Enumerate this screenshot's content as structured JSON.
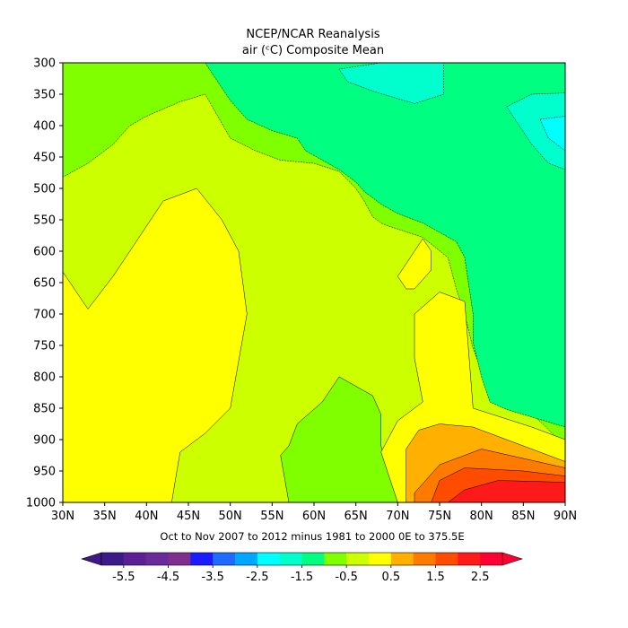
{
  "chart_data": {
    "type": "contour",
    "title": "NCEP/NCAR Reanalysis",
    "subtitle": "air (ᶜC) Composite Mean",
    "xlabel": "Oct to Nov 2007 to 2012 minus 1981 to 2000 0E to 375.5E",
    "ylabel": "",
    "x_ticks": [
      "30N",
      "35N",
      "40N",
      "45N",
      "50N",
      "55N",
      "60N",
      "65N",
      "70N",
      "75N",
      "80N",
      "85N",
      "90N"
    ],
    "y_ticks": [
      "300",
      "350",
      "400",
      "450",
      "500",
      "550",
      "600",
      "650",
      "700",
      "750",
      "800",
      "850",
      "900",
      "950",
      "1000"
    ],
    "xlim": [
      30,
      90
    ],
    "ylim": [
      1000,
      300
    ],
    "y_inverted": true,
    "colorbar": {
      "tick_labels": [
        "-5.5",
        "-4.5",
        "-3.5",
        "-2.5",
        "-1.5",
        "-0.5",
        "0.5",
        "1.5",
        "2.5"
      ],
      "tick_values": [
        -5.5,
        -4.5,
        -3.5,
        -2.5,
        -1.5,
        -0.5,
        0.5,
        1.5,
        2.5
      ],
      "boundaries": [
        -6,
        -5.5,
        -5,
        -4.5,
        -4,
        -3.5,
        -3,
        -2.5,
        -2,
        -1.5,
        -1,
        -0.5,
        0,
        0.5,
        1,
        1.5,
        2,
        2.5,
        3
      ],
      "colors": [
        "#3d1a87",
        "#5b2096",
        "#6a2a9a",
        "#7e2e8e",
        "#1a1aff",
        "#1f6bff",
        "#00a6ff",
        "#00ffff",
        "#00ffcc",
        "#00ff80",
        "#80ff00",
        "#ccff00",
        "#ffff00",
        "#ffb000",
        "#ff7a00",
        "#ff4c00",
        "#ff1a1a",
        "#ff0033"
      ],
      "extend": "both"
    },
    "regions": [
      {
        "level": "0 to 0.5",
        "color": "#ccff00",
        "points": [
          [
            30,
            300
          ],
          [
            90,
            300
          ],
          [
            90,
            1000
          ],
          [
            30,
            1000
          ]
        ]
      },
      {
        "level": "-0.5 to 0",
        "color": "#80ff00",
        "points": [
          [
            30,
            300
          ],
          [
            90,
            300
          ],
          [
            90,
            910
          ],
          [
            85,
            845
          ],
          [
            83,
            800
          ],
          [
            80,
            790
          ],
          [
            79,
            755
          ],
          [
            78,
            700
          ],
          [
            77,
            660
          ],
          [
            76,
            610
          ],
          [
            73,
            578
          ],
          [
            68.5,
            558
          ],
          [
            68,
            555
          ],
          [
            67,
            545
          ],
          [
            66,
            520
          ],
          [
            65,
            500
          ],
          [
            63,
            473
          ],
          [
            60,
            460
          ],
          [
            56,
            455
          ],
          [
            53,
            440
          ],
          [
            50,
            420
          ],
          [
            47,
            350
          ],
          [
            44,
            362
          ],
          [
            40,
            385
          ],
          [
            38,
            400
          ],
          [
            36,
            430
          ],
          [
            33,
            460
          ],
          [
            30,
            482
          ]
        ]
      },
      {
        "level": "-1 to -0.5",
        "color": "#00ff80",
        "points": [
          [
            30,
            300
          ],
          [
            90,
            300
          ],
          [
            90,
            880
          ],
          [
            83,
            852
          ],
          [
            81,
            840
          ],
          [
            80,
            800
          ],
          [
            79,
            745
          ],
          [
            79,
            700
          ],
          [
            78,
            610
          ],
          [
            77,
            585
          ],
          [
            73,
            555
          ],
          [
            70,
            540
          ],
          [
            68,
            525
          ],
          [
            66,
            505
          ],
          [
            65,
            490
          ],
          [
            63,
            470
          ],
          [
            61,
            455
          ],
          [
            59,
            440
          ],
          [
            58,
            420
          ],
          [
            55,
            408
          ],
          [
            52,
            390
          ],
          [
            50,
            360
          ],
          [
            48,
            320
          ],
          [
            47,
            300
          ]
        ]
      },
      {
        "level": "-1.5 to -1",
        "color": "#00ffcc",
        "points": [
          [
            68,
            300
          ],
          [
            75.5,
            300
          ],
          [
            75.5,
            350
          ],
          [
            72,
            365
          ],
          [
            67,
            345
          ],
          [
            64,
            330
          ],
          [
            63,
            310
          ]
        ]
      },
      {
        "level": "-1.5 to -1 (NE)",
        "color": "#00ffcc",
        "points": [
          [
            83,
            370
          ],
          [
            86,
            350
          ],
          [
            90,
            348
          ],
          [
            90,
            470
          ],
          [
            88,
            460
          ],
          [
            86,
            430
          ]
        ]
      },
      {
        "level": "-2 to -1.5",
        "color": "#00ffff",
        "points": [
          [
            87,
            390
          ],
          [
            90,
            385
          ],
          [
            90,
            440
          ],
          [
            88,
            420
          ]
        ]
      },
      {
        "level": "0.5 to 1 (W)",
        "color": "#ffff00",
        "points": [
          [
            30,
            633
          ],
          [
            30,
            1000
          ],
          [
            43,
            1000
          ],
          [
            44,
            920
          ],
          [
            47,
            890
          ],
          [
            50,
            850
          ],
          [
            52,
            700
          ],
          [
            51,
            600
          ],
          [
            49,
            550
          ],
          [
            46,
            500
          ],
          [
            42,
            520
          ],
          [
            38,
            600
          ],
          [
            36,
            640
          ],
          [
            33,
            692
          ]
        ]
      },
      {
        "level": "0.5 to 1 (E)",
        "color": "#ffff00",
        "points": [
          [
            72,
            700
          ],
          [
            75,
            665
          ],
          [
            78,
            680
          ],
          [
            79,
            850
          ],
          [
            86,
            880
          ],
          [
            90,
            900
          ],
          [
            90,
            1000
          ],
          [
            70,
            1000
          ],
          [
            68,
            920
          ],
          [
            70,
            870
          ],
          [
            73,
            840
          ],
          [
            72,
            770
          ]
        ]
      },
      {
        "level": "1 to 1.5",
        "color": "#ffb000",
        "points": [
          [
            71,
            915
          ],
          [
            72.5,
            885
          ],
          [
            75,
            875
          ],
          [
            79,
            880
          ],
          [
            90,
            935
          ],
          [
            90,
            1000
          ],
          [
            71,
            1000
          ]
        ]
      },
      {
        "level": "1.5 to 2",
        "color": "#ff7a00",
        "points": [
          [
            72,
            985
          ],
          [
            75,
            940
          ],
          [
            80,
            915
          ],
          [
            90,
            945
          ],
          [
            90,
            1000
          ],
          [
            72,
            1000
          ]
        ]
      },
      {
        "level": "2 to 2.5",
        "color": "#ff4c00",
        "points": [
          [
            74,
            1000
          ],
          [
            75,
            965
          ],
          [
            78,
            945
          ],
          [
            85,
            950
          ],
          [
            90,
            958
          ],
          [
            90,
            1000
          ]
        ]
      },
      {
        "level": "2.5 to 3",
        "color": "#ff1a1a",
        "points": [
          [
            76,
            1000
          ],
          [
            78,
            980
          ],
          [
            82,
            965
          ],
          [
            90,
            968
          ],
          [
            90,
            1000
          ]
        ]
      }
    ],
    "inner_green_patch": {
      "color": "#80ff00",
      "points": [
        [
          56,
          925
        ],
        [
          57,
          910
        ],
        [
          58,
          875
        ],
        [
          61,
          840
        ],
        [
          63,
          800
        ],
        [
          67,
          830
        ],
        [
          68,
          860
        ],
        [
          68,
          910
        ],
        [
          69,
          955
        ],
        [
          70,
          1000
        ],
        [
          57,
          1000
        ]
      ]
    },
    "inner_yellow_patch": {
      "color": "#ffff00",
      "points": [
        [
          73,
          580
        ],
        [
          71,
          620
        ],
        [
          70,
          640
        ],
        [
          71,
          660
        ],
        [
          72,
          660
        ],
        [
          74,
          630
        ],
        [
          74,
          600
        ]
      ]
    }
  }
}
